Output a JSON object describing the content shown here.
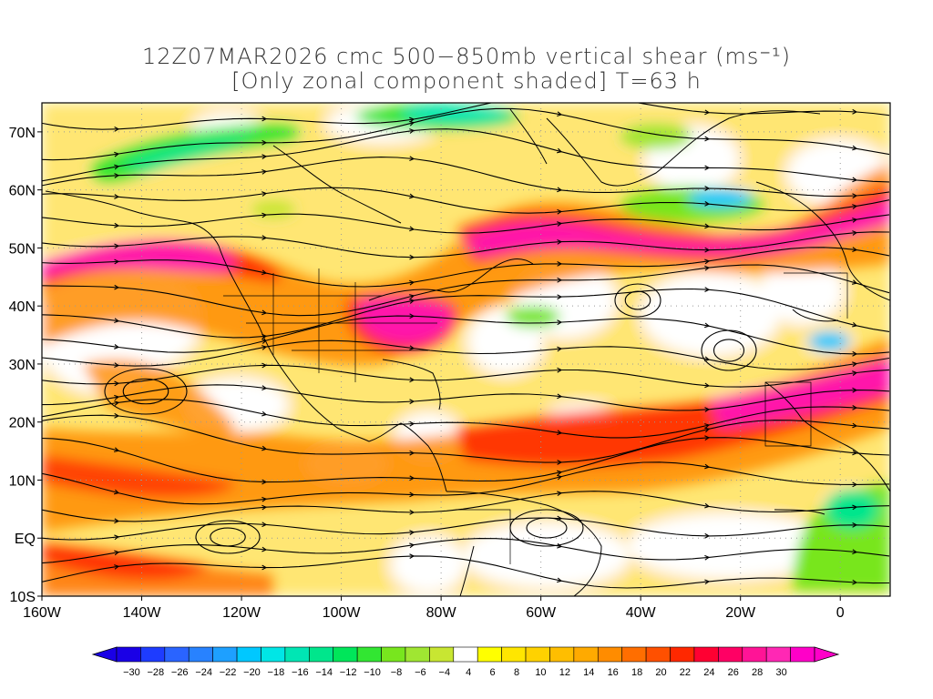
{
  "title": {
    "line1": "12Z07MAR2026 cmc 500−850mb vertical shear (ms⁻¹)",
    "line2": "[Only zonal component shaded] T=63 h"
  },
  "axes": {
    "lon_labels": [
      "160W",
      "140W",
      "120W",
      "100W",
      "80W",
      "60W",
      "40W",
      "20W",
      "0"
    ],
    "lon_values": [
      -160,
      -140,
      -120,
      -100,
      -80,
      -60,
      -40,
      -20,
      0
    ],
    "lat_labels": [
      "70N",
      "60N",
      "50N",
      "40N",
      "30N",
      "20N",
      "10N",
      "EQ",
      "10S"
    ],
    "lat_values": [
      70,
      60,
      50,
      40,
      30,
      20,
      10,
      0,
      -10
    ],
    "lon_range": [
      -160,
      10
    ],
    "lat_range": [
      -10,
      75
    ],
    "grid": true
  },
  "colorbar": {
    "labels": [
      "−30",
      "−28",
      "−26",
      "−24",
      "−22",
      "−20",
      "−18",
      "−16",
      "−14",
      "−12",
      "−10",
      "−8",
      "−6",
      "−4",
      "4",
      "6",
      "8",
      "10",
      "12",
      "14",
      "16",
      "18",
      "20",
      "22",
      "24",
      "26",
      "28",
      "30"
    ],
    "colors": [
      "#1a00e6",
      "#1e3cff",
      "#2a64ff",
      "#2882ff",
      "#1ea0ff",
      "#00c8ff",
      "#00e6e6",
      "#00e6b4",
      "#00e68c",
      "#00e65a",
      "#32e632",
      "#78e61e",
      "#a0e632",
      "#c8e632",
      "#ffffff",
      "#ffff00",
      "#ffe600",
      "#ffd200",
      "#ffbe00",
      "#ffaa00",
      "#ff8c00",
      "#ff6e00",
      "#ff5000",
      "#ff2800",
      "#ff0032",
      "#ff0064",
      "#ff1496",
      "#ff28b4",
      "#ff00c8"
    ]
  },
  "map_data": {
    "type": "filled-contour-map",
    "field": "zonal component of 500-850mb vertical shear",
    "units": "ms⁻¹",
    "features": [
      {
        "label": "jet-north-pacific",
        "lon_center": -140,
        "lat_center": 47,
        "max_value": 30
      },
      {
        "label": "jet-eastern-us",
        "lon_center": -85,
        "lat_center": 38,
        "max_value": 30
      },
      {
        "label": "jet-north-atlantic",
        "lon_center": -45,
        "lat_center": 52,
        "max_value": 30
      },
      {
        "label": "jet-subtropical-atlantic",
        "lon_center": -20,
        "lat_center": 20,
        "max_value": 28
      },
      {
        "label": "easterlies-arctic",
        "lon_center": -130,
        "lat_center": 65,
        "min_value": -14
      },
      {
        "label": "easterlies-west-africa",
        "lon_center": 0,
        "lat_center": 2,
        "min_value": -12
      }
    ]
  }
}
